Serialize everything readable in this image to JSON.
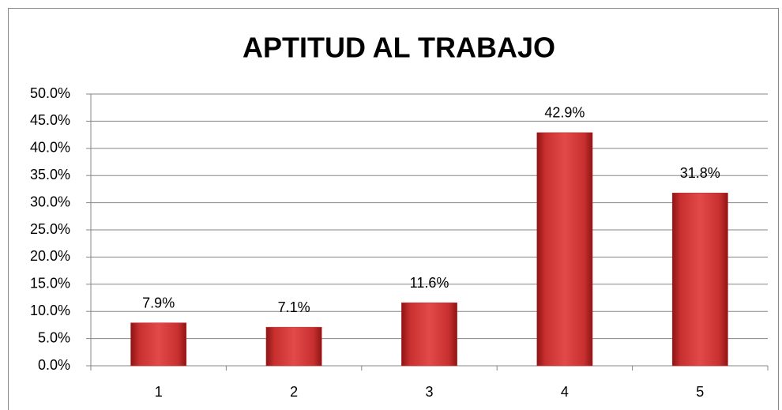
{
  "chart_data": {
    "type": "bar",
    "title": "APTITUD AL TRABAJO",
    "categories": [
      "1",
      "2",
      "3",
      "4",
      "5"
    ],
    "values": [
      7.9,
      7.1,
      11.6,
      42.9,
      31.8
    ],
    "value_labels": [
      "7.9%",
      "7.1%",
      "11.6%",
      "42.9%",
      "31.8%"
    ],
    "color": "#c0282a",
    "ylim": [
      0,
      50
    ],
    "yticks": [
      {
        "value": 0,
        "label": "0.0%"
      },
      {
        "value": 5,
        "label": "5.0%"
      },
      {
        "value": 10,
        "label": "10.0%"
      },
      {
        "value": 15,
        "label": "15.0%"
      },
      {
        "value": 20,
        "label": "20.0%"
      },
      {
        "value": 25,
        "label": "25.0%"
      },
      {
        "value": 30,
        "label": "30.0%"
      },
      {
        "value": 35,
        "label": "35.0%"
      },
      {
        "value": 40,
        "label": "40.0%"
      },
      {
        "value": 45,
        "label": "45.0%"
      },
      {
        "value": 50,
        "label": "50.0%"
      }
    ],
    "grid": true
  }
}
